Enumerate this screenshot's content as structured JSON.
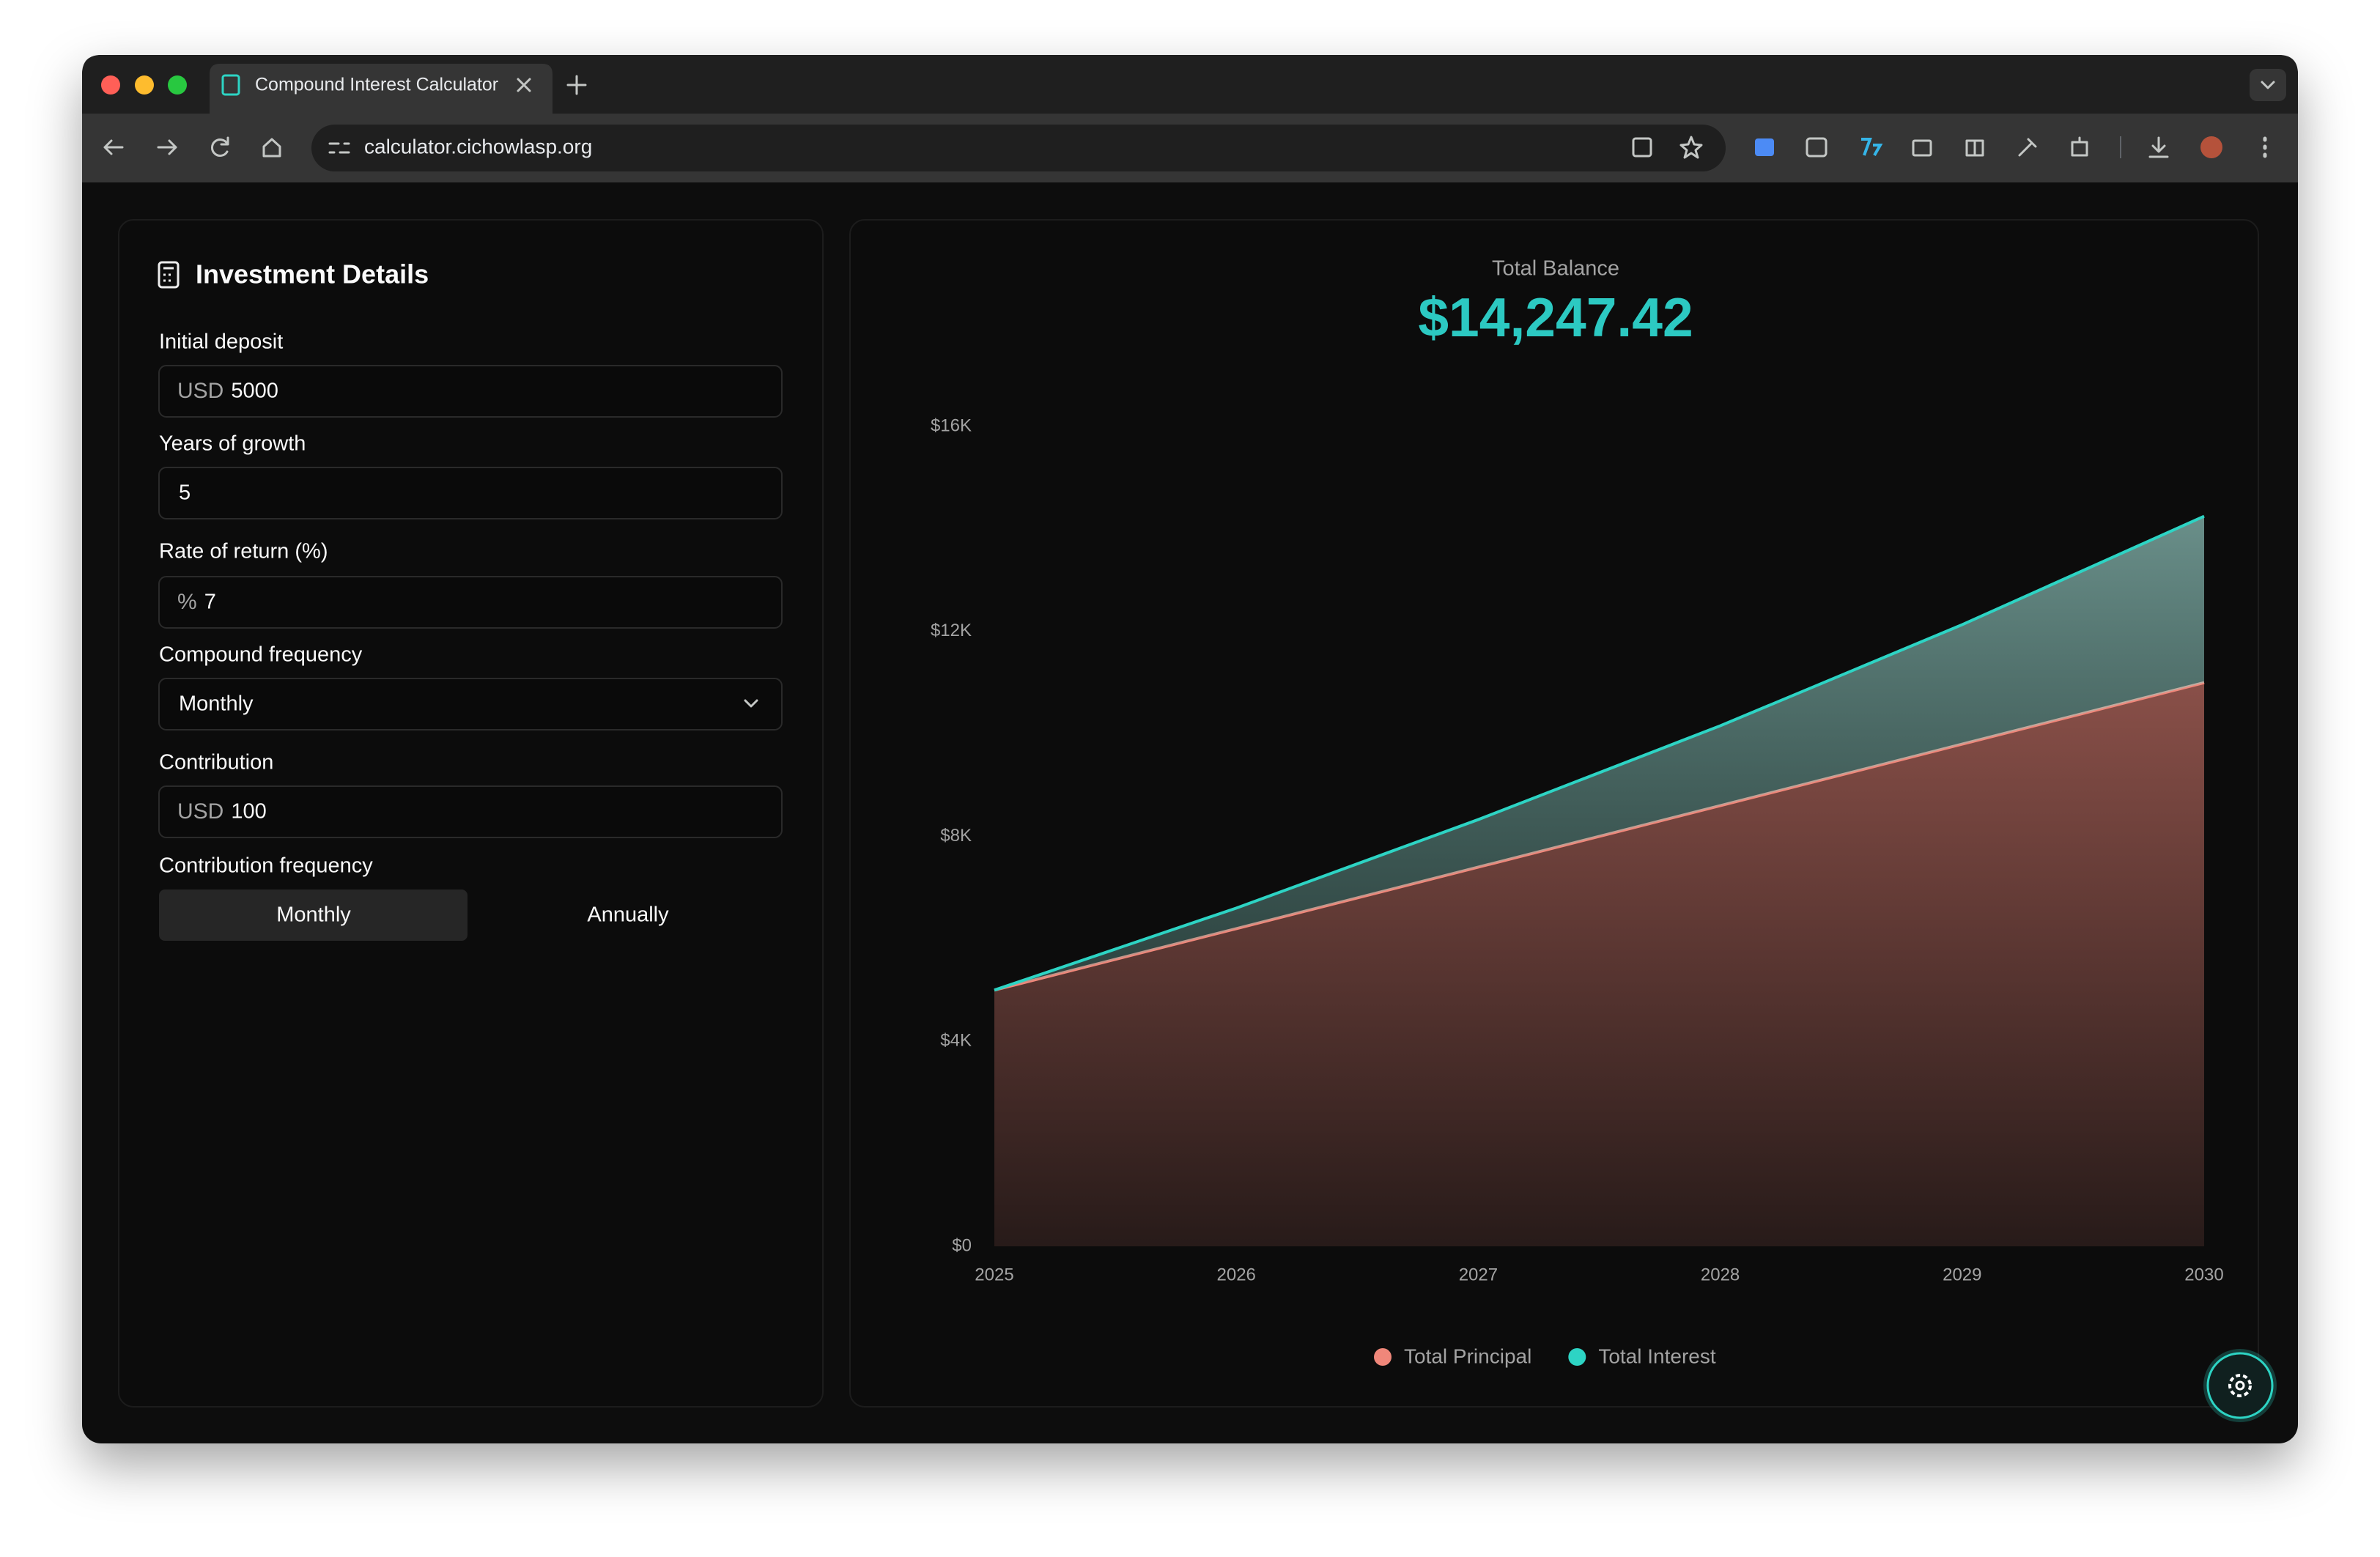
{
  "browser": {
    "tab_title": "Compound Interest Calculator",
    "url": "calculator.cichowlasp.org"
  },
  "form": {
    "title": "Investment Details",
    "fields": [
      {
        "label": "Initial deposit",
        "prefix": "USD",
        "value": "5000"
      },
      {
        "label": "Years of growth",
        "value": "5"
      },
      {
        "label": "Rate of return (%)",
        "prefix": "%",
        "value": "7"
      },
      {
        "label": "Compound frequency",
        "value": "Monthly"
      },
      {
        "label": "Contribution",
        "prefix": "USD",
        "value": "100"
      }
    ],
    "contribution_frequency": {
      "label": "Contribution frequency",
      "options": [
        "Monthly",
        "Annually"
      ],
      "selected": 0
    }
  },
  "summary": {
    "label": "Total Balance",
    "value": "$14,247.42"
  },
  "chart_data": {
    "type": "area",
    "stacked": true,
    "x": [
      2025,
      2026,
      2027,
      2028,
      2029,
      2030
    ],
    "xlim": [
      2025,
      2030
    ],
    "xticks": [
      2025,
      2026,
      2027,
      2028,
      2029,
      2030
    ],
    "ylim": [
      0,
      16000
    ],
    "yticks": [
      {
        "value": 0,
        "label": "$0"
      },
      {
        "value": 4000,
        "label": "$4K"
      },
      {
        "value": 8000,
        "label": "$8K"
      },
      {
        "value": 12000,
        "label": "$12K"
      },
      {
        "value": 16000,
        "label": "$16K"
      }
    ],
    "series": [
      {
        "name": "Total Principal",
        "color": "#f0877a",
        "values": [
          5000,
          6200,
          7400,
          8600,
          9800,
          11000
        ]
      },
      {
        "name": "Total Interest",
        "color": "#2dd4c4",
        "values": [
          0,
          401,
          928,
          1558,
          2331,
          3247.42
        ]
      }
    ],
    "legend": "bottom"
  }
}
